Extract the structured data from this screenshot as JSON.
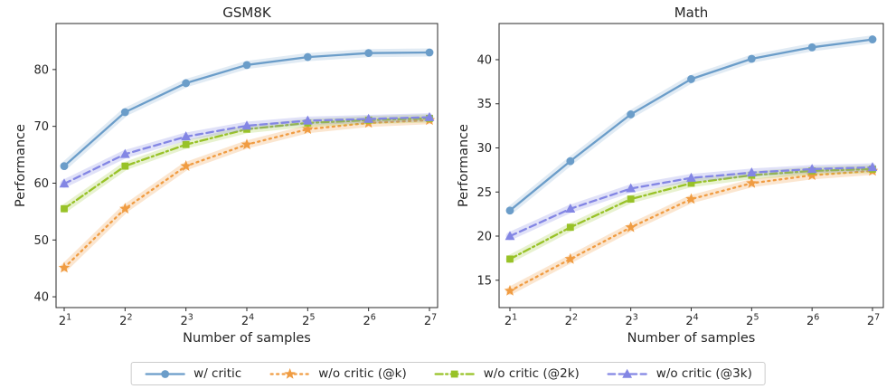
{
  "figure": {
    "background": "#ffffff",
    "text_color": "#262626",
    "spine_color": "#2a2a2a"
  },
  "chart_data": [
    {
      "type": "line",
      "title": "GSM8K",
      "xlabel": "Number of samples",
      "ylabel": "Performance",
      "x_scale": "log2",
      "x_base": "2",
      "x_exponents": [
        1,
        2,
        3,
        4,
        5,
        6,
        7
      ],
      "x_tick_labels": [
        "2^1",
        "2^2",
        "2^3",
        "2^4",
        "2^5",
        "2^6",
        "2^7"
      ],
      "ylim": [
        38.1,
        88.1
      ],
      "yticks": [
        40,
        50,
        60,
        70,
        80
      ],
      "grid": false,
      "error_band": true,
      "series": [
        {
          "name": "w/ critic",
          "values": [
            63.0,
            72.5,
            77.6,
            80.8,
            82.2,
            82.9,
            83.0
          ]
        },
        {
          "name": "w/o critic (@k)",
          "values": [
            45.1,
            55.5,
            63.0,
            66.8,
            69.5,
            70.6,
            71.1
          ]
        },
        {
          "name": "w/o critic (@2k)",
          "values": [
            55.5,
            63.0,
            66.8,
            69.5,
            70.6,
            71.1,
            71.4
          ]
        },
        {
          "name": "w/o critic (@3k)",
          "values": [
            59.9,
            65.1,
            68.2,
            70.1,
            71.0,
            71.3,
            71.6
          ]
        }
      ]
    },
    {
      "type": "line",
      "title": "Math",
      "xlabel": "Number of samples",
      "ylabel": "Performance",
      "x_scale": "log2",
      "x_base": "2",
      "x_exponents": [
        1,
        2,
        3,
        4,
        5,
        6,
        7
      ],
      "x_tick_labels": [
        "2^1",
        "2^2",
        "2^3",
        "2^4",
        "2^5",
        "2^6",
        "2^7"
      ],
      "ylim": [
        11.9,
        44.1
      ],
      "yticks": [
        15,
        20,
        25,
        30,
        35,
        40
      ],
      "grid": false,
      "error_band": true,
      "series": [
        {
          "name": "w/ critic",
          "values": [
            22.9,
            28.5,
            33.8,
            37.8,
            40.1,
            41.4,
            42.3
          ]
        },
        {
          "name": "w/o critic (@k)",
          "values": [
            13.8,
            17.4,
            21.0,
            24.2,
            26.0,
            26.9,
            27.4
          ]
        },
        {
          "name": "w/o critic (@2k)",
          "values": [
            17.4,
            21.0,
            24.2,
            26.0,
            26.9,
            27.4,
            27.6
          ]
        },
        {
          "name": "w/o critic (@3k)",
          "values": [
            20.0,
            23.1,
            25.4,
            26.6,
            27.2,
            27.6,
            27.8
          ]
        }
      ]
    }
  ],
  "styles": {
    "series": [
      {
        "name": "w/ critic",
        "color": "#6b9dc9",
        "band_opacity": 0.2,
        "line": "solid",
        "marker": "circle"
      },
      {
        "name": "w/o critic (@k)",
        "color": "#f09c42",
        "band_opacity": 0.25,
        "line": "dotted",
        "marker": "star"
      },
      {
        "name": "w/o critic (@2k)",
        "color": "#98c227",
        "band_opacity": 0.22,
        "line": "dashdot",
        "marker": "square"
      },
      {
        "name": "w/o critic (@3k)",
        "color": "#8386e4",
        "band_opacity": 0.25,
        "line": "dashed",
        "marker": "triangle"
      }
    ]
  },
  "legend": {
    "position": "bottom-center",
    "items": [
      "w/ critic",
      "w/o critic (@k)",
      "w/o critic (@2k)",
      "w/o critic (@3k)"
    ]
  }
}
